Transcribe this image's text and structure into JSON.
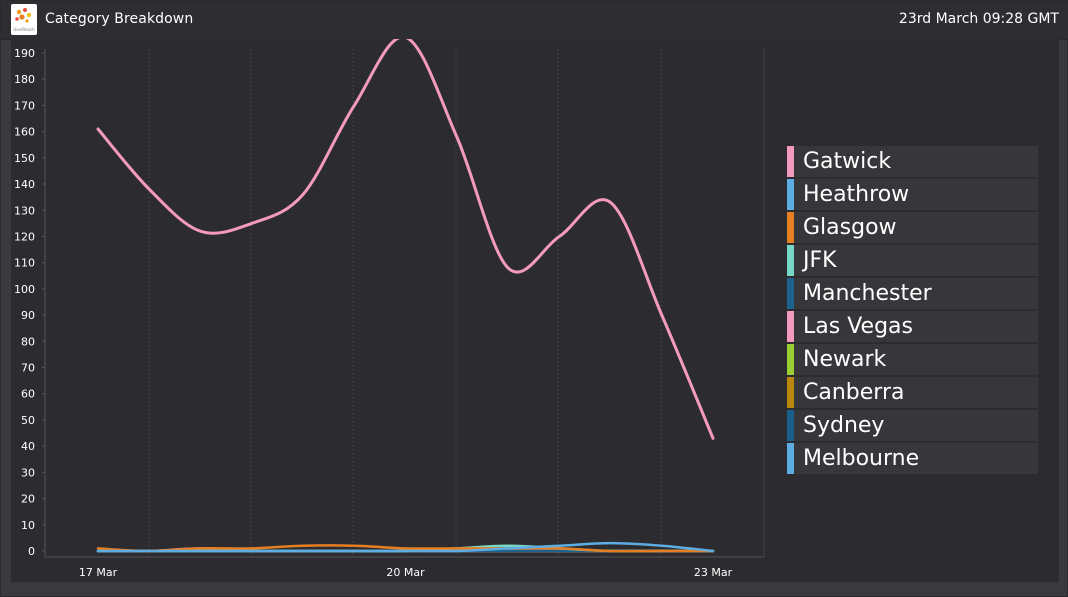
{
  "header": {
    "title": "Category Breakdown",
    "timestamp": "23rd March 09:28 GMT",
    "logo_icon": "brand-logo-icon",
    "logo_text": "UserReach"
  },
  "colors": {
    "background": "#3a3a3e",
    "panel": "#2c2c30",
    "text": "#ffffff"
  },
  "chart_data": {
    "type": "line",
    "x": [
      "17 Mar",
      "17.5 Mar",
      "18 Mar",
      "18.5 Mar",
      "19 Mar",
      "19.5 Mar",
      "20 Mar",
      "20.5 Mar",
      "21 Mar",
      "21.5 Mar",
      "22 Mar",
      "22.5 Mar",
      "23 Mar"
    ],
    "x_tick_labels": [
      "17 Mar",
      "20 Mar",
      "23 Mar"
    ],
    "ylim": [
      0,
      195
    ],
    "y_ticks": [
      0,
      10,
      20,
      30,
      40,
      50,
      60,
      70,
      80,
      90,
      100,
      110,
      120,
      130,
      140,
      150,
      160,
      170,
      180,
      190
    ],
    "grid": "vertical-dotted",
    "legend_position": "right",
    "series": [
      {
        "name": "Gatwick",
        "color": "#f49ac1",
        "values": [
          161,
          138,
          122,
          125,
          136,
          170,
          196,
          158,
          108,
          120,
          133,
          90,
          43
        ]
      },
      {
        "name": "Heathrow",
        "color": "#5dade2",
        "values": [
          0,
          0,
          0,
          0,
          0,
          0,
          0,
          0,
          1,
          2,
          3,
          2,
          0
        ]
      },
      {
        "name": "Glasgow",
        "color": "#e67e22",
        "values": [
          1,
          0,
          1,
          1,
          2,
          2,
          1,
          1,
          1,
          1,
          0,
          0,
          0
        ]
      },
      {
        "name": "JFK",
        "color": "#76d7c4",
        "values": [
          0,
          0,
          0,
          0,
          0,
          0,
          0,
          1,
          2,
          1,
          0,
          0,
          0
        ]
      },
      {
        "name": "Manchester",
        "color": "#1f618d",
        "values": [
          0,
          0,
          0,
          0,
          0,
          0,
          0,
          0,
          0,
          0,
          0,
          0,
          0
        ]
      },
      {
        "name": "Las Vegas",
        "color": "#f49ac1",
        "values": [
          0,
          0,
          1,
          0,
          0,
          0,
          0,
          0,
          0,
          0,
          0,
          0,
          0
        ]
      },
      {
        "name": "Newark",
        "color": "#9acd32",
        "values": [
          0,
          0,
          0,
          0,
          0,
          0,
          0,
          0,
          0,
          0,
          0,
          0,
          0
        ]
      },
      {
        "name": "Canberra",
        "color": "#b8860b",
        "values": [
          0,
          0,
          0,
          0,
          0,
          0,
          0,
          0,
          0,
          0,
          0,
          0,
          0
        ]
      },
      {
        "name": "Sydney",
        "color": "#1a5f8a",
        "values": [
          0,
          0,
          0,
          0,
          0,
          0,
          0,
          0,
          0,
          0,
          0,
          0,
          0
        ]
      },
      {
        "name": "Melbourne",
        "color": "#5dade2",
        "values": [
          0,
          0,
          0,
          0,
          0,
          0,
          0,
          0,
          0,
          0,
          0,
          0,
          0
        ]
      }
    ]
  }
}
